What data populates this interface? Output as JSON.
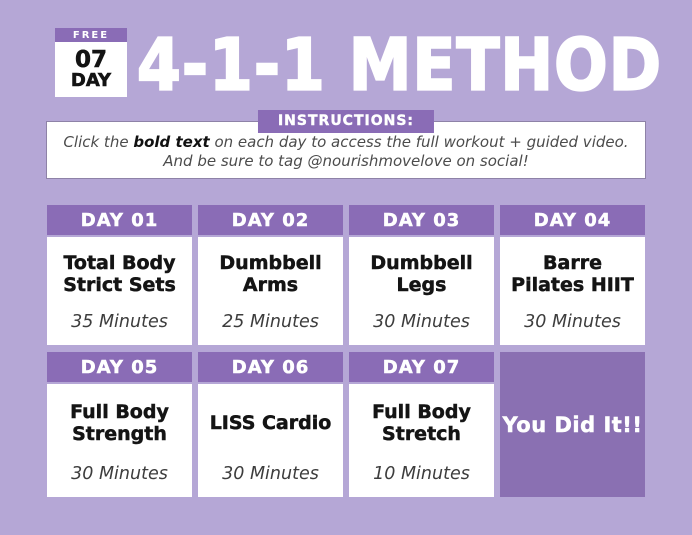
{
  "colors": {
    "background": "#b5a7d6",
    "accent_purple": "#8a6cb6",
    "completion_purple": "#8a70b2",
    "card_white": "#ffffff",
    "text_black": "#141414",
    "text_gray": "#4c4c4c"
  },
  "badge": {
    "free_label": "FREE",
    "number": "07",
    "day_label": "DAY"
  },
  "title": "4-1-1 METHOD",
  "instructions": {
    "label": "INSTRUCTIONS:",
    "line1_prefix": "Click the ",
    "line1_bold": "bold text",
    "line1_suffix": " on each day to access the full workout + guided video.",
    "line2": "And be sure to tag @nourishmovelove on social!"
  },
  "days": [
    {
      "header": "DAY 01",
      "workout_line1": "Total Body",
      "workout_line2": "Strict Sets",
      "duration": "35 Minutes"
    },
    {
      "header": "DAY 02",
      "workout_line1": "Dumbbell",
      "workout_line2": "Arms",
      "duration": "25 Minutes"
    },
    {
      "header": "DAY 03",
      "workout_line1": "Dumbbell",
      "workout_line2": "Legs",
      "duration": "30 Minutes"
    },
    {
      "header": "DAY 04",
      "workout_line1": "Barre",
      "workout_line2": "Pilates HIIT",
      "duration": "30 Minutes"
    },
    {
      "header": "DAY 05",
      "workout_line1": "Full Body",
      "workout_line2": "Strength",
      "duration": "30 Minutes"
    },
    {
      "header": "DAY 06",
      "workout_line1": "LISS Cardio",
      "workout_line2": "",
      "duration": "30 Minutes"
    },
    {
      "header": "DAY 07",
      "workout_line1": "Full Body",
      "workout_line2": "Stretch",
      "duration": "10 Minutes"
    }
  ],
  "completion": {
    "label": "You Did It!!"
  }
}
